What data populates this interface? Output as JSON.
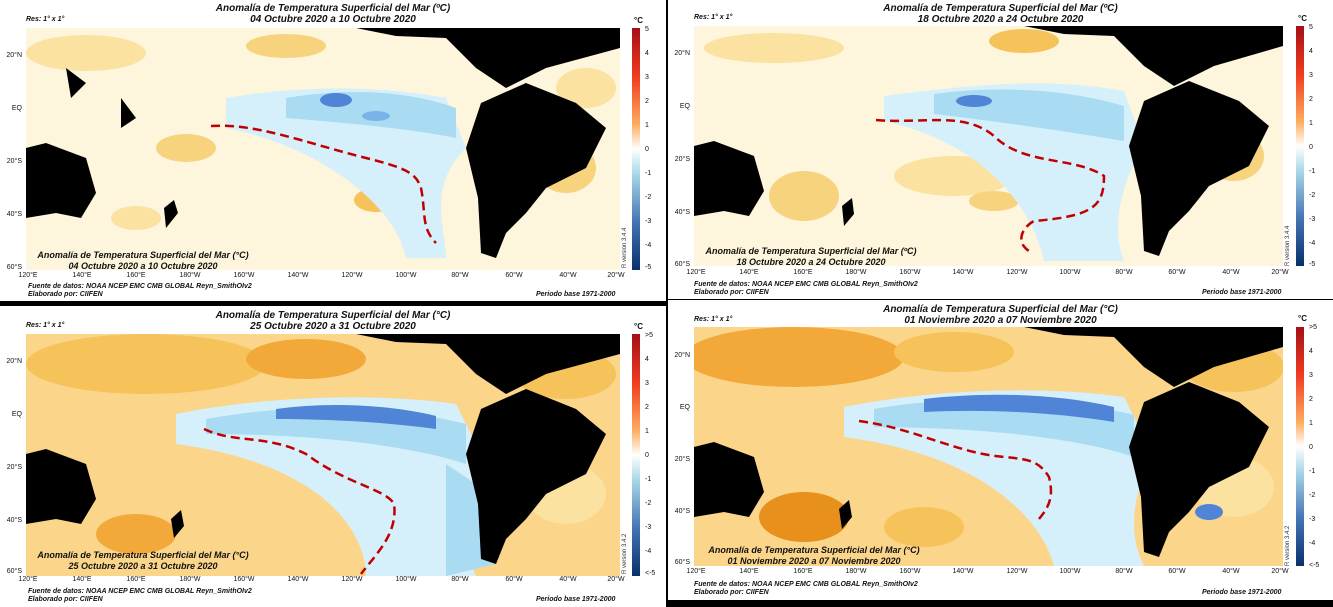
{
  "panels": [
    {
      "title_line1": "Anomalía de Temperatura Superficial del Mar (ºC)",
      "title_line2": "04 Octubre 2020 a 10 Octubre 2020",
      "resolution": "Res: 1° x 1°",
      "unit": "°C",
      "colorbar_labels": [
        "5",
        "4",
        "3",
        "2",
        "1",
        "0",
        "-1",
        "-2",
        "-3",
        "-4",
        "-5"
      ],
      "lat_labels": [
        "20°N",
        "EQ",
        "20°S",
        "40°S",
        "60°S"
      ],
      "lon_labels": [
        "120°E",
        "140°E",
        "160°E",
        "180°W",
        "160°W",
        "140°W",
        "120°W",
        "100°W",
        "80°W",
        "60°W",
        "40°W",
        "20°W"
      ],
      "inset_line1": "Anomalía de Temperatura Superficial del Mar (°C)",
      "inset_line2": "04 Octubre 2020 a 10 Octubre 2020",
      "source": "Fuente de datos: NOAA NCEP EMC CMB GLOBAL Reyn_SmithOIv2",
      "made_by": "Elaborado por: CIIFEN",
      "base_period": "Periodo base 1971-2000",
      "r_version": "R version 3.4.4"
    },
    {
      "title_line1": "Anomalía de Temperatura Superficial del Mar (ºC)",
      "title_line2": "18 Octubre 2020 a 24 Octubre 2020",
      "resolution": "Res: 1° x 1°",
      "unit": "°C",
      "colorbar_labels": [
        "5",
        "4",
        "3",
        "2",
        "1",
        "0",
        "-1",
        "-2",
        "-3",
        "-4",
        "-5"
      ],
      "lat_labels": [
        "20°N",
        "EQ",
        "20°S",
        "40°S",
        "60°S"
      ],
      "lon_labels": [
        "120°E",
        "140°E",
        "160°E",
        "180°W",
        "160°W",
        "140°W",
        "120°W",
        "100°W",
        "80°W",
        "60°W",
        "40°W",
        "20°W"
      ],
      "inset_line1": "Anomalía de Temperatura Superficial del Mar (ºC)",
      "inset_line2": "18 Octubre 2020 a 24 Octubre 2020",
      "source": "Fuente de datos: NOAA NCEP EMC CMB GLOBAL Reyn_SmithOIv2",
      "made_by": "Elaborado por: CIIFEN",
      "base_period": "Periodo base 1971-2000",
      "r_version": "R version 3.4.4"
    },
    {
      "title_line1": "Anomalía de Temperatura Superficial del Mar (°C)",
      "title_line2": "25 Octubre 2020 a 31 Octubre 2020",
      "resolution": "Res: 1° x 1°",
      "unit": "°C",
      "colorbar_labels": [
        ">5",
        "4",
        "3",
        "2",
        "1",
        "0",
        "-1",
        "-2",
        "-3",
        "-4",
        "<-5"
      ],
      "lat_labels": [
        "20°N",
        "EQ",
        "20°S",
        "40°S",
        "60°S"
      ],
      "lon_labels": [
        "120°E",
        "140°E",
        "160°E",
        "180°W",
        "160°W",
        "140°W",
        "120°W",
        "100°W",
        "80°W",
        "60°W",
        "40°W",
        "20°W"
      ],
      "inset_line1": "Anomalía de Temperatura Superficial del Mar (°C)",
      "inset_line2": "25 Octubre 2020 a 31 Octubre 2020",
      "source": "Fuente de datos: NOAA NCEP EMC CMB GLOBAL Reyn_SmithOIv2",
      "made_by": "Elaborado por: CIIFEN",
      "base_period": "Periodo base 1971-2000",
      "r_version": "R version 3.4.2"
    },
    {
      "title_line1": "Anomalía de Temperatura Superficial del Mar (°C)",
      "title_line2": "01 Noviembre 2020 a 07 Noviembre 2020",
      "resolution": "Res: 1° x 1°",
      "unit": "°C",
      "colorbar_labels": [
        ">5",
        "4",
        "3",
        "2",
        "1",
        "0",
        "-1",
        "-2",
        "-3",
        "-4",
        "<-5"
      ],
      "lat_labels": [
        "20°N",
        "EQ",
        "20°S",
        "40°S",
        "60°S"
      ],
      "lon_labels": [
        "120°E",
        "140°E",
        "160°E",
        "180°W",
        "160°W",
        "140°W",
        "120°W",
        "100°W",
        "80°W",
        "60°W",
        "40°W",
        "20°W"
      ],
      "inset_line1": "Anomalía de Temperatura Superficial del Mar (°C)",
      "inset_line2": "01 Noviembre 2020 a 07 Noviembre 2020",
      "source": "Fuente de datos: NOAA NCEP EMC CMB GLOBAL Reyn_SmithOIv2",
      "made_by": "Elaborado por: CIIFEN",
      "base_period": "Periodo base 1971-2000",
      "r_version": "R version 3.4.2"
    }
  ],
  "colors": {
    "warm_strong": "#e8901c",
    "warm": "#f6c25a",
    "warm_light": "#fbe6a8",
    "cool_light": "#d6f0fb",
    "cool": "#a9dbf2",
    "cool_strong": "#4f84d6",
    "land": "#000000",
    "front_line": "#c00000"
  }
}
